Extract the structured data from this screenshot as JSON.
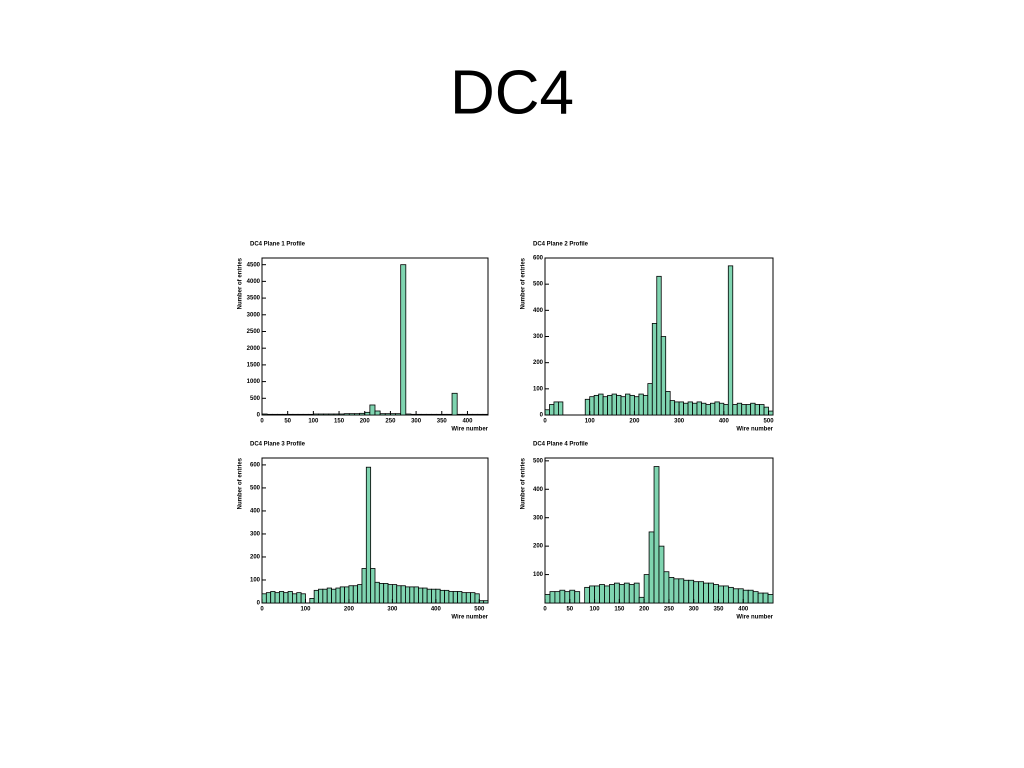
{
  "title": "DC4",
  "chart_data": [
    {
      "type": "histogram",
      "title": "DC4 Plane 1 Profile",
      "x_label": "Wire number",
      "y_label": "Number of entries",
      "color": "#7fd4b0",
      "bins": [
        0,
        10,
        20,
        30,
        40,
        50,
        60,
        70,
        80,
        90,
        100,
        110,
        120,
        130,
        140,
        150,
        160,
        170,
        180,
        190,
        200,
        210,
        220,
        230,
        240,
        250,
        260,
        270,
        280,
        290,
        300,
        310,
        320,
        330,
        340,
        350,
        360,
        370,
        380,
        390,
        400,
        410,
        420,
        430,
        440
      ],
      "values": [
        30,
        20,
        20,
        20,
        20,
        20,
        20,
        20,
        20,
        20,
        30,
        30,
        30,
        30,
        30,
        30,
        40,
        40,
        40,
        50,
        80,
        300,
        120,
        40,
        40,
        40,
        40,
        4500,
        30,
        20,
        20,
        20,
        20,
        20,
        20,
        20,
        20,
        650,
        20,
        20,
        20,
        20,
        20,
        20
      ],
      "xlim": [
        0,
        440
      ],
      "xticks": [
        0,
        50,
        100,
        150,
        200,
        250,
        300,
        350,
        400
      ],
      "ylim": [
        0,
        4700
      ],
      "yticks": [
        0,
        500,
        1000,
        1500,
        2000,
        2500,
        3000,
        3500,
        4000,
        4500
      ]
    },
    {
      "type": "histogram",
      "title": "DC4 Plane 2 Profile",
      "x_label": "Wire number",
      "y_label": "Number of entries",
      "color": "#7fd4b0",
      "bins": [
        0,
        10,
        20,
        30,
        40,
        50,
        60,
        70,
        80,
        90,
        100,
        110,
        120,
        130,
        140,
        150,
        160,
        170,
        180,
        190,
        200,
        210,
        220,
        230,
        240,
        250,
        260,
        270,
        280,
        290,
        300,
        310,
        320,
        330,
        340,
        350,
        360,
        370,
        380,
        390,
        400,
        410,
        420,
        430,
        440,
        450,
        460,
        470,
        480,
        490,
        500,
        510
      ],
      "values": [
        20,
        40,
        50,
        50,
        0,
        0,
        0,
        0,
        0,
        60,
        70,
        75,
        80,
        70,
        75,
        80,
        75,
        70,
        80,
        75,
        70,
        80,
        75,
        120,
        350,
        530,
        300,
        90,
        55,
        50,
        50,
        45,
        50,
        45,
        50,
        45,
        40,
        45,
        50,
        45,
        40,
        570,
        40,
        45,
        40,
        40,
        45,
        40,
        40,
        30,
        15
      ],
      "xlim": [
        0,
        510
      ],
      "xticks": [
        0,
        100,
        200,
        300,
        400,
        500
      ],
      "ylim": [
        0,
        600
      ],
      "yticks": [
        0,
        100,
        200,
        300,
        400,
        500,
        600
      ]
    },
    {
      "type": "histogram",
      "title": "DC4 Plane 3 Profile",
      "x_label": "Wire number",
      "y_label": "Number of entries",
      "color": "#7fd4b0",
      "bins": [
        0,
        10,
        20,
        30,
        40,
        50,
        60,
        70,
        80,
        90,
        100,
        110,
        120,
        130,
        140,
        150,
        160,
        170,
        180,
        190,
        200,
        210,
        220,
        230,
        240,
        250,
        260,
        270,
        280,
        290,
        300,
        310,
        320,
        330,
        340,
        350,
        360,
        370,
        380,
        390,
        400,
        410,
        420,
        430,
        440,
        450,
        460,
        470,
        480,
        490,
        500,
        510,
        520
      ],
      "values": [
        40,
        45,
        50,
        45,
        50,
        45,
        50,
        40,
        45,
        40,
        0,
        20,
        55,
        60,
        60,
        65,
        60,
        65,
        70,
        70,
        75,
        75,
        80,
        150,
        590,
        150,
        90,
        85,
        85,
        80,
        80,
        75,
        75,
        70,
        70,
        70,
        65,
        65,
        60,
        60,
        60,
        55,
        55,
        50,
        50,
        50,
        45,
        45,
        45,
        40,
        10,
        10
      ],
      "xlim": [
        0,
        520
      ],
      "xticks": [
        0,
        100,
        200,
        300,
        400,
        500
      ],
      "ylim": [
        0,
        630
      ],
      "yticks": [
        0,
        100,
        200,
        300,
        400,
        500,
        600
      ]
    },
    {
      "type": "histogram",
      "title": "DC4 Plane 4 Profile",
      "x_label": "Wire number",
      "y_label": "Number of entries",
      "color": "#7fd4b0",
      "bins": [
        0,
        10,
        20,
        30,
        40,
        50,
        60,
        70,
        80,
        90,
        100,
        110,
        120,
        130,
        140,
        150,
        160,
        170,
        180,
        190,
        200,
        210,
        220,
        230,
        240,
        250,
        260,
        270,
        280,
        290,
        300,
        310,
        320,
        330,
        340,
        350,
        360,
        370,
        380,
        390,
        400,
        410,
        420,
        430,
        440,
        450,
        460
      ],
      "values": [
        30,
        40,
        40,
        45,
        40,
        45,
        40,
        0,
        55,
        60,
        60,
        65,
        60,
        65,
        70,
        65,
        70,
        65,
        70,
        20,
        100,
        250,
        480,
        200,
        110,
        90,
        85,
        85,
        80,
        80,
        75,
        75,
        70,
        70,
        65,
        60,
        60,
        55,
        50,
        50,
        45,
        45,
        40,
        35,
        35,
        30
      ],
      "xlim": [
        0,
        460
      ],
      "xticks": [
        0,
        50,
        100,
        150,
        200,
        250,
        300,
        350,
        400
      ],
      "ylim": [
        0,
        510
      ],
      "yticks": [
        100,
        200,
        300,
        400,
        500
      ]
    }
  ]
}
